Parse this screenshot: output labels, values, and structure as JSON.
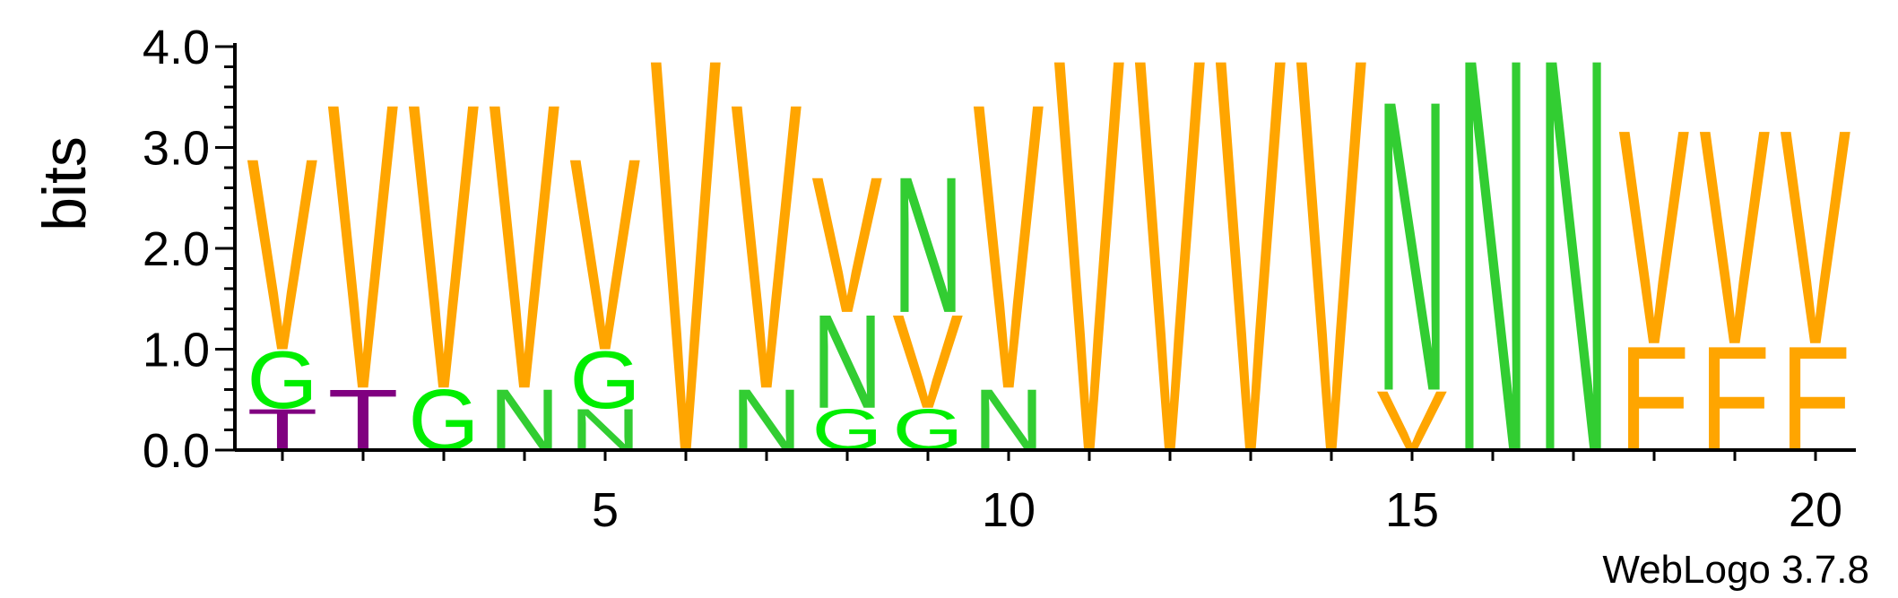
{
  "chart_data": {
    "type": "sequence-logo",
    "ylabel": "bits",
    "ylim": [
      0,
      4
    ],
    "y_ticks": [
      "0.0",
      "1.0",
      "2.0",
      "3.0",
      "4.0"
    ],
    "y_tick_values": [
      0,
      1,
      2,
      3,
      4
    ],
    "x_ticks": [
      "5",
      "10",
      "15",
      "20"
    ],
    "x_tick_values": [
      5,
      10,
      15,
      20
    ],
    "positions": [
      1,
      2,
      3,
      4,
      5,
      6,
      7,
      8,
      9,
      10,
      11,
      12,
      13,
      14,
      15,
      16,
      17,
      18,
      19,
      20
    ],
    "colors": {
      "V": "#ffa500",
      "F": "#ffa500",
      "N": "#32cd32",
      "G": "#00ee00",
      "T": "#800080"
    },
    "stacks": [
      [
        {
          "letter": "T",
          "bits": 0.42
        },
        {
          "letter": "G",
          "bits": 0.58
        },
        {
          "letter": "V",
          "bits": 1.95
        }
      ],
      [
        {
          "letter": "T",
          "bits": 0.62
        },
        {
          "letter": "V",
          "bits": 2.9
        }
      ],
      [
        {
          "letter": "G",
          "bits": 0.62
        },
        {
          "letter": "V",
          "bits": 2.9
        }
      ],
      [
        {
          "letter": "N",
          "bits": 0.62
        },
        {
          "letter": "V",
          "bits": 2.9
        }
      ],
      [
        {
          "letter": "N",
          "bits": 0.42
        },
        {
          "letter": "G",
          "bits": 0.58
        },
        {
          "letter": "V",
          "bits": 1.95
        }
      ],
      [
        {
          "letter": "V",
          "bits": 4.0
        }
      ],
      [
        {
          "letter": "N",
          "bits": 0.62
        },
        {
          "letter": "V",
          "bits": 2.9
        }
      ],
      [
        {
          "letter": "G",
          "bits": 0.42
        },
        {
          "letter": "N",
          "bits": 0.95
        },
        {
          "letter": "V",
          "bits": 1.38
        }
      ],
      [
        {
          "letter": "G",
          "bits": 0.42
        },
        {
          "letter": "V",
          "bits": 0.95
        },
        {
          "letter": "N",
          "bits": 1.38
        }
      ],
      [
        {
          "letter": "N",
          "bits": 0.62
        },
        {
          "letter": "V",
          "bits": 2.9
        }
      ],
      [
        {
          "letter": "V",
          "bits": 4.0
        }
      ],
      [
        {
          "letter": "V",
          "bits": 4.0
        }
      ],
      [
        {
          "letter": "V",
          "bits": 4.0
        }
      ],
      [
        {
          "letter": "V",
          "bits": 4.0
        }
      ],
      [
        {
          "letter": "V",
          "bits": 0.6
        },
        {
          "letter": "N",
          "bits": 2.95
        }
      ],
      [
        {
          "letter": "N",
          "bits": 4.0
        }
      ],
      [
        {
          "letter": "N",
          "bits": 4.0
        }
      ],
      [
        {
          "letter": "F",
          "bits": 1.06
        },
        {
          "letter": "V",
          "bits": 2.18
        }
      ],
      [
        {
          "letter": "F",
          "bits": 1.06
        },
        {
          "letter": "V",
          "bits": 2.18
        }
      ],
      [
        {
          "letter": "F",
          "bits": 1.06
        },
        {
          "letter": "V",
          "bits": 2.18
        }
      ]
    ]
  },
  "footer": {
    "version_label": "WebLogo 3.7.8"
  }
}
